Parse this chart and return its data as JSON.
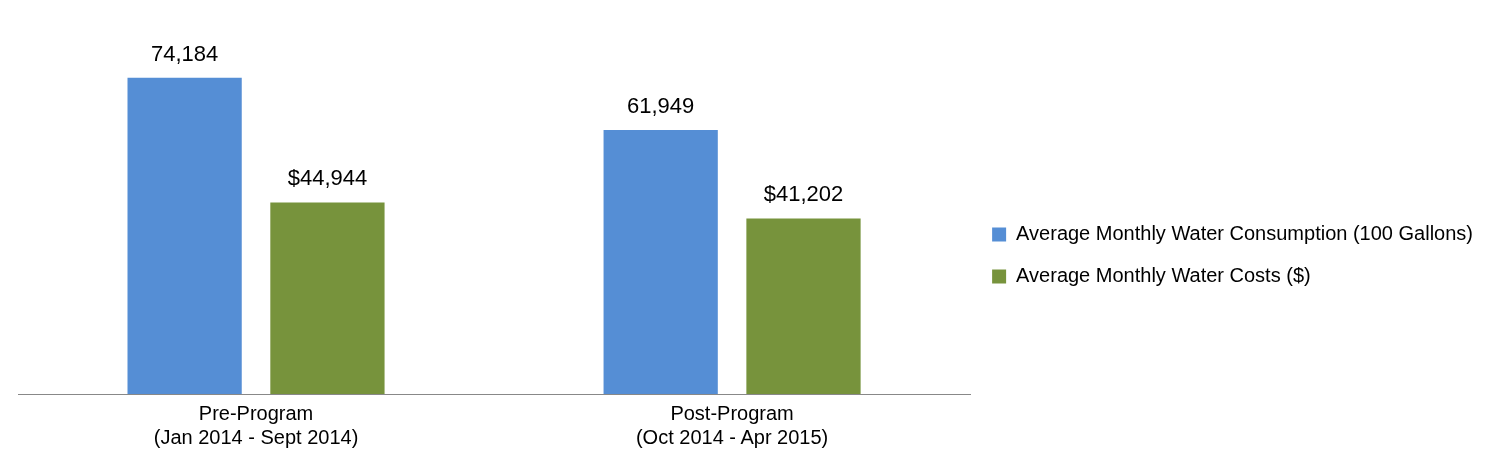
{
  "chart_data": {
    "type": "bar",
    "categories": [
      "Pre-Program\n(Jan 2014 - Sept 2014)",
      "Post-Program\n(Oct 2014 - Apr 2015)"
    ],
    "series": [
      {
        "name": "Average Monthly Water Consumption (100 Gallons)",
        "color": "#558ed5",
        "values": [
          74184,
          61949
        ],
        "value_labels": [
          "74,184",
          "61,949"
        ]
      },
      {
        "name": "Average Monthly Water Costs ($)",
        "color": "#77933c",
        "values": [
          44944,
          41202
        ],
        "value_labels": [
          "$44,944",
          "$41,202"
        ]
      }
    ],
    "legend": "right",
    "grid": false
  }
}
